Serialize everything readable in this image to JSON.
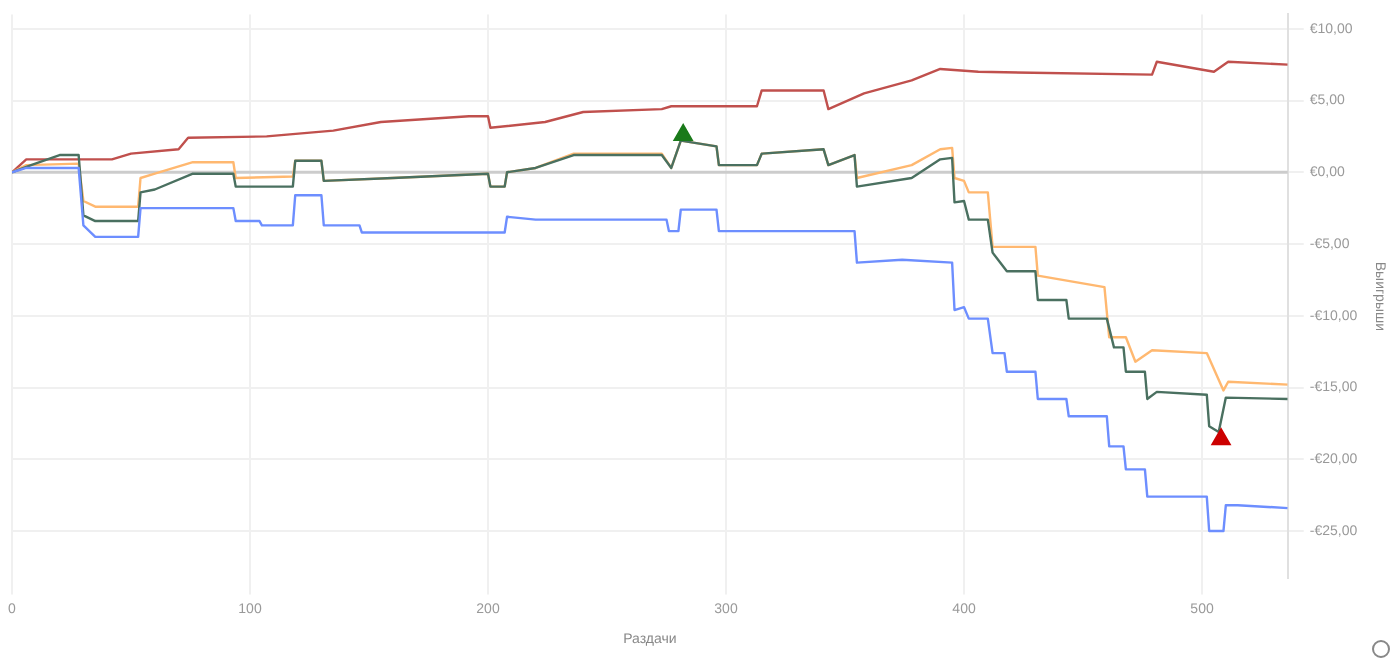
{
  "chart_data": {
    "type": "line",
    "xlabel": "Раздачи",
    "ylabel": "Выигрыши",
    "xlim": [
      0,
      536
    ],
    "xticks": [
      0,
      100,
      200,
      300,
      400,
      500
    ],
    "ylim": [
      -28.3,
      11
    ],
    "yticks": [
      {
        "value": 10,
        "label": "€10,00"
      },
      {
        "value": 5,
        "label": "€5,00"
      },
      {
        "value": 0,
        "label": "€0,00"
      },
      {
        "value": -5,
        "label": "-€5,00"
      },
      {
        "value": -10,
        "label": "-€10,00"
      },
      {
        "value": -15,
        "label": "-€15,00"
      },
      {
        "value": -20,
        "label": "-€20,00"
      },
      {
        "value": -25,
        "label": "-€25,00"
      }
    ],
    "grid": true,
    "legend": false,
    "marker": "none",
    "line_style": "solid",
    "ref_lines": [
      {
        "axis": "y",
        "value": 0,
        "color": "#cccccc"
      }
    ],
    "series": [
      {
        "color": "#c0504d",
        "x": [
          0,
          6,
          42,
          50,
          70,
          74,
          107,
          135,
          155,
          192,
          200,
          201,
          224,
          240,
          273,
          277,
          313,
          315,
          341,
          343,
          358,
          378,
          390,
          406,
          479,
          481,
          505,
          511,
          536
        ],
        "values": [
          0,
          0.9,
          0.9,
          1.3,
          1.6,
          2.4,
          2.5,
          2.9,
          3.5,
          3.9,
          3.9,
          3.1,
          3.5,
          4.2,
          4.4,
          4.6,
          4.6,
          5.7,
          5.7,
          4.4,
          5.5,
          6.4,
          7.2,
          7.0,
          6.8,
          7.7,
          7.0,
          7.7,
          7.5
        ]
      },
      {
        "color": "#ffb870",
        "x": [
          0,
          6,
          28,
          30,
          35,
          53,
          54,
          60,
          76,
          93,
          94,
          118,
          119,
          130,
          131,
          160,
          200,
          201,
          207,
          208,
          220,
          236,
          273,
          277,
          281,
          296,
          297,
          313,
          315,
          341,
          343,
          354,
          355,
          378,
          390,
          395,
          396,
          400,
          402,
          410,
          412,
          430,
          431,
          459,
          461,
          468,
          472,
          479,
          502,
          509,
          511,
          536
        ],
        "values": [
          0,
          0.5,
          0.6,
          -2.0,
          -2.4,
          -2.4,
          -0.4,
          -0.1,
          0.7,
          0.7,
          -0.4,
          -0.3,
          0.8,
          0.8,
          -0.6,
          -0.4,
          -0.1,
          -1.0,
          -1.0,
          0,
          0.3,
          1.3,
          1.3,
          0.3,
          2.2,
          1.8,
          0.5,
          0.5,
          1.3,
          1.6,
          0.5,
          1.2,
          -0.4,
          0.5,
          1.6,
          1.7,
          -0.4,
          -0.6,
          -1.4,
          -1.4,
          -5.2,
          -5.2,
          -7.2,
          -8.0,
          -11.5,
          -11.5,
          -13.2,
          -12.4,
          -12.6,
          -15.2,
          -14.6,
          -14.8
        ]
      },
      {
        "color": "#4a7060",
        "x": [
          0,
          8,
          20,
          28,
          30,
          35,
          53,
          54,
          60,
          76,
          93,
          94,
          118,
          119,
          130,
          131,
          160,
          200,
          201,
          207,
          208,
          220,
          236,
          273,
          277,
          281,
          296,
          297,
          313,
          315,
          341,
          343,
          354,
          355,
          378,
          390,
          395,
          396,
          400,
          402,
          410,
          412,
          418,
          430,
          431,
          443,
          444,
          460,
          463,
          467,
          468,
          476,
          477,
          481,
          502,
          503,
          507,
          510,
          536
        ],
        "values": [
          0,
          0.5,
          1.2,
          1.2,
          -3.0,
          -3.4,
          -3.4,
          -1.4,
          -1.2,
          -0.1,
          -0.1,
          -1.0,
          -1.0,
          0.8,
          0.8,
          -0.6,
          -0.4,
          -0.1,
          -1.0,
          -1.0,
          0,
          0.3,
          1.2,
          1.2,
          0.3,
          2.2,
          1.8,
          0.5,
          0.5,
          1.3,
          1.6,
          0.5,
          1.2,
          -1.0,
          -0.4,
          0.9,
          1.0,
          -2.1,
          -2.0,
          -3.3,
          -3.3,
          -5.6,
          -6.9,
          -6.9,
          -8.9,
          -8.9,
          -10.2,
          -10.2,
          -12.2,
          -12.2,
          -13.9,
          -13.9,
          -15.8,
          -15.3,
          -15.5,
          -17.7,
          -18.1,
          -15.7,
          -15.8
        ]
      },
      {
        "color": "#6d8eff",
        "x": [
          0,
          6,
          28,
          30,
          35,
          53,
          54,
          93,
          94,
          104,
          105,
          118,
          119,
          130,
          131,
          146,
          147,
          207,
          208,
          220,
          275,
          276,
          280,
          281,
          296,
          297,
          354,
          355,
          374,
          395,
          396,
          400,
          402,
          410,
          412,
          417,
          418,
          430,
          431,
          443,
          444,
          460,
          461,
          467,
          468,
          476,
          477,
          502,
          503,
          509,
          510,
          515,
          536
        ],
        "values": [
          0,
          0.3,
          0.3,
          -3.7,
          -4.5,
          -4.5,
          -2.5,
          -2.5,
          -3.4,
          -3.4,
          -3.7,
          -3.7,
          -1.6,
          -1.6,
          -3.7,
          -3.7,
          -4.2,
          -4.2,
          -3.1,
          -3.3,
          -3.3,
          -4.1,
          -4.1,
          -2.6,
          -2.6,
          -4.1,
          -4.1,
          -6.3,
          -6.1,
          -6.3,
          -9.6,
          -9.4,
          -10.2,
          -10.2,
          -12.6,
          -12.6,
          -13.9,
          -13.9,
          -15.8,
          -15.8,
          -17.0,
          -17.0,
          -19.1,
          -19.1,
          -20.7,
          -20.7,
          -22.6,
          -22.6,
          -25.0,
          -25.0,
          -23.2,
          -23.2,
          -23.4
        ]
      },
      {
        "type": "scatter",
        "marker": "triangle",
        "color": "#1a7a1a",
        "x": [
          282
        ],
        "values": [
          2.6
        ]
      },
      {
        "type": "scatter",
        "marker": "triangle",
        "color": "#cc0000",
        "x": [
          508
        ],
        "values": [
          -18.6
        ]
      }
    ]
  }
}
